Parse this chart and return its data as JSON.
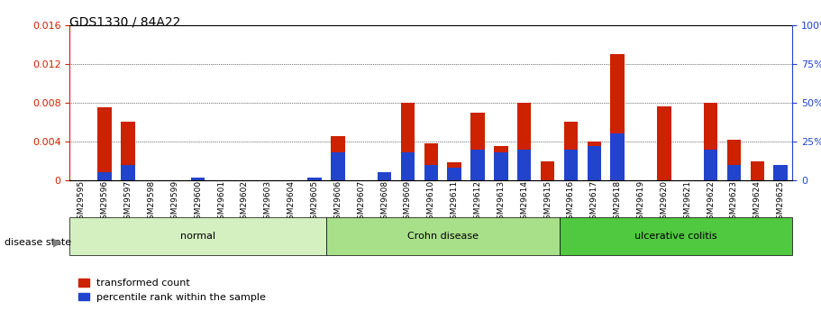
{
  "title": "GDS1330 / 84A22",
  "samples": [
    "GSM29595",
    "GSM29596",
    "GSM29597",
    "GSM29598",
    "GSM29599",
    "GSM29600",
    "GSM29601",
    "GSM29602",
    "GSM29603",
    "GSM29604",
    "GSM29605",
    "GSM29606",
    "GSM29607",
    "GSM29608",
    "GSM29609",
    "GSM29610",
    "GSM29611",
    "GSM29612",
    "GSM29613",
    "GSM29614",
    "GSM29615",
    "GSM29616",
    "GSM29617",
    "GSM29618",
    "GSM29619",
    "GSM29620",
    "GSM29621",
    "GSM29622",
    "GSM29623",
    "GSM29624",
    "GSM29625"
  ],
  "red_values": [
    0.0,
    0.0075,
    0.006,
    0.0,
    0.0,
    0.0,
    0.0,
    0.0,
    0.0,
    0.0,
    0.0,
    0.0046,
    0.0,
    0.0,
    0.008,
    0.0038,
    0.0019,
    0.007,
    0.0035,
    0.008,
    0.002,
    0.006,
    0.004,
    0.013,
    0.0,
    0.0076,
    0.0,
    0.008,
    0.0042,
    0.002,
    0.0008
  ],
  "blue_values_pct": [
    0.0,
    5.0,
    10.0,
    0.0,
    0.0,
    2.0,
    0.0,
    0.0,
    0.0,
    0.0,
    2.0,
    18.0,
    0.0,
    5.0,
    18.0,
    10.0,
    8.0,
    20.0,
    18.0,
    20.0,
    0.0,
    20.0,
    22.0,
    30.0,
    0.0,
    0.0,
    0.0,
    20.0,
    10.0,
    0.0,
    10.0
  ],
  "groups": [
    {
      "label": "normal",
      "start": 0,
      "end": 10,
      "color": "#d4f0c0"
    },
    {
      "label": "Crohn disease",
      "start": 11,
      "end": 20,
      "color": "#a8e08a"
    },
    {
      "label": "ulcerative colitis",
      "start": 21,
      "end": 30,
      "color": "#50c840"
    }
  ],
  "ylim_left": [
    0,
    0.016
  ],
  "ylim_right": [
    0,
    100
  ],
  "yticks_left": [
    0,
    0.004,
    0.008,
    0.012,
    0.016
  ],
  "yticks_right": [
    0,
    25,
    50,
    75,
    100
  ],
  "bar_color_red": "#cc2200",
  "bar_color_blue": "#2244cc",
  "bar_width": 0.6,
  "disease_state_label": "disease state",
  "legend_red": "transformed count",
  "legend_blue": "percentile rank within the sample",
  "bg_color": "#e8e8e8",
  "plot_bg": "#ffffff"
}
